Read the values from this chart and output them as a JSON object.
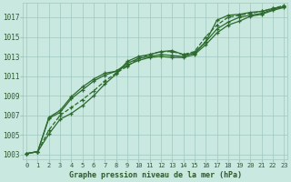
{
  "title": "Graphe pression niveau de la mer (hPa)",
  "xlabel_hours": [
    0,
    1,
    2,
    3,
    4,
    5,
    6,
    7,
    8,
    9,
    10,
    11,
    12,
    13,
    14,
    15,
    16,
    17,
    18,
    19,
    20,
    21,
    22,
    23
  ],
  "line1": [
    1003.1,
    1003.3,
    1005.1,
    1006.6,
    1007.2,
    1008.0,
    1009.0,
    1010.2,
    1011.2,
    1012.5,
    1013.0,
    1013.2,
    1013.5,
    1013.6,
    1013.2,
    1013.3,
    1014.5,
    1016.7,
    1017.2,
    1017.3,
    1017.5,
    1017.6,
    1017.9,
    1018.1
  ],
  "line2": [
    1003.1,
    1003.3,
    1006.7,
    1007.3,
    1008.7,
    1009.6,
    1010.5,
    1011.1,
    1011.5,
    1012.3,
    1012.8,
    1013.0,
    1013.2,
    1013.1,
    1013.0,
    1013.4,
    1014.5,
    1015.8,
    1016.5,
    1017.0,
    1017.2,
    1017.4,
    1017.8,
    1018.1
  ],
  "line3": [
    1003.1,
    1003.3,
    1006.8,
    1007.5,
    1008.9,
    1009.9,
    1010.7,
    1011.3,
    1011.5,
    1012.1,
    1012.6,
    1012.9,
    1013.0,
    1012.9,
    1012.9,
    1013.2,
    1014.2,
    1015.4,
    1016.2,
    1016.6,
    1017.1,
    1017.3,
    1017.7,
    1018.0
  ],
  "line4_dashed": [
    1003.1,
    1003.3,
    1005.5,
    1007.0,
    1007.8,
    1008.6,
    1009.5,
    1010.5,
    1011.3,
    1012.0,
    1012.8,
    1013.2,
    1013.5,
    1013.5,
    1013.2,
    1013.5,
    1015.0,
    1016.2,
    1017.0,
    1017.2,
    1017.4,
    1017.6,
    1017.9,
    1018.2
  ],
  "line_color": "#2d6a2d",
  "bg_color": "#c8e8e0",
  "grid_color": "#a0c8c0",
  "text_color": "#2d5a2d",
  "ylim": [
    1002.5,
    1018.5
  ],
  "yticks": [
    1003,
    1005,
    1007,
    1009,
    1011,
    1013,
    1015,
    1017
  ],
  "figw": 3.2,
  "figh": 2.0,
  "dpi": 100
}
